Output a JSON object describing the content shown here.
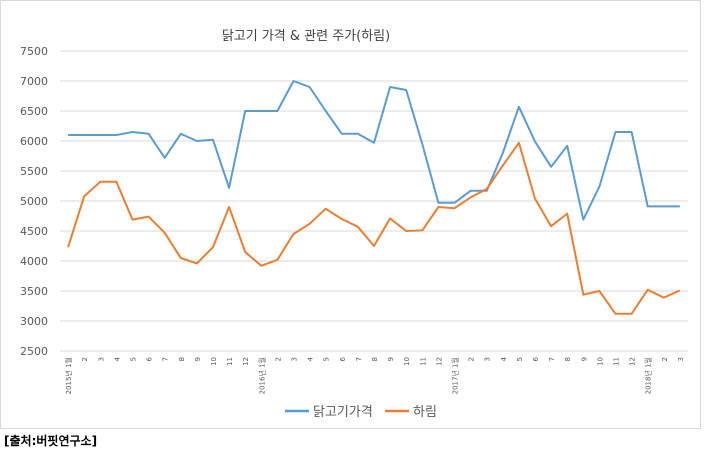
{
  "source_note": "[출처:버핏연구소]",
  "colors": {
    "series_blue": "#5B9BD5",
    "series_orange": "#ED7D31",
    "grid": "#D9D9D9",
    "text": "#595959",
    "frame": "#D9D9D9"
  },
  "chart_data": {
    "type": "line",
    "title": "닭고기 가격 & 관련 주가(하림)",
    "xlabel": "",
    "ylabel": "",
    "ylim": [
      2500,
      7500
    ],
    "yticks": [
      "7500",
      "7000",
      "6500",
      "6000",
      "5500",
      "5000",
      "4500",
      "4000",
      "3500",
      "3000",
      "2500"
    ],
    "grid": true,
    "legend_position": "bottom",
    "categories": [
      "2015년 1월",
      "2",
      "3",
      "4",
      "5",
      "6",
      "7",
      "8",
      "9",
      "10",
      "11",
      "12",
      "2016년 1월",
      "2",
      "3",
      "4",
      "5",
      "6",
      "7",
      "8",
      "9",
      "10",
      "11",
      "12",
      "2017년 1월",
      "2",
      "3",
      "4",
      "5",
      "6",
      "7",
      "8",
      "9",
      "10",
      "11",
      "12",
      "2018년 1월",
      "2",
      "3"
    ],
    "series": [
      {
        "name": "닭고기가격",
        "color": "#5B9BD5",
        "values": [
          6100,
          6100,
          6100,
          6100,
          6150,
          6120,
          5720,
          6120,
          6000,
          6020,
          5220,
          6500,
          6500,
          6500,
          7000,
          6900,
          6500,
          6120,
          6120,
          5970,
          6900,
          6850,
          5950,
          4970,
          4970,
          5170,
          5170,
          5800,
          6570,
          5990,
          5570,
          5920,
          4690,
          5240,
          6150,
          6150,
          4910,
          4910,
          4910
        ]
      },
      {
        "name": "하림",
        "color": "#ED7D31",
        "values": [
          4230,
          5080,
          5320,
          5320,
          4690,
          4740,
          4470,
          4050,
          3960,
          4230,
          4900,
          4150,
          3920,
          4020,
          4450,
          4620,
          4870,
          4700,
          4570,
          4250,
          4710,
          4500,
          4510,
          4900,
          4880,
          5060,
          5200,
          5590,
          5970,
          5040,
          4580,
          4790,
          3440,
          3500,
          3120,
          3120,
          3520,
          3390,
          3510
        ]
      }
    ]
  }
}
